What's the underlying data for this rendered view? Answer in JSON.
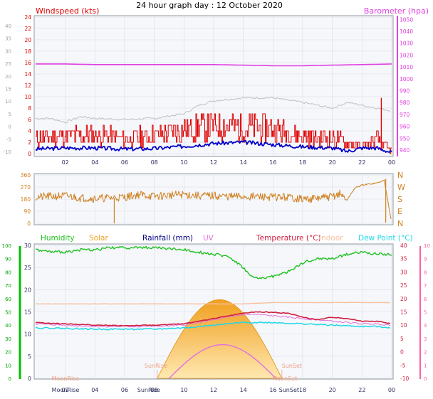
{
  "title": "24 hour graph day : 12 October 2020",
  "colors": {
    "wind": "#e00000",
    "gust_avg": "#0000c8",
    "baro": "#e040e0",
    "gust_max": "#c0c0c0",
    "dir": "#d08020",
    "humidity": "#20c020",
    "solar": "#f0a020",
    "rainfall": "#000080",
    "uv": "#e070e0",
    "temperature": "#d02040",
    "indoor": "#f8c0a0",
    "dewpoint": "#20d8e8",
    "axis_left_green": "#00c000",
    "axis_right_pink": "#ff60a0"
  },
  "chart_data": [
    {
      "type": "line",
      "panel": "wind",
      "labels": {
        "left": "Windspeed (kts)",
        "right": "Barometer (hpa)"
      },
      "x_ticks": [
        "02",
        "04",
        "06",
        "08",
        "10",
        "12",
        "14",
        "16",
        "18",
        "20",
        "22",
        "00"
      ],
      "y_left_ticks_kts": [
        "24",
        "22",
        "20",
        "18",
        "16",
        "14",
        "12",
        "10",
        "8",
        "6",
        "4",
        "2",
        "0"
      ],
      "y_left_ticks_grey": [
        "40",
        "35",
        "30",
        "25",
        "20",
        "15",
        "10",
        "5",
        "0",
        "-5",
        "-10"
      ],
      "y_right_ticks": [
        "1050",
        "1040",
        "1030",
        "1020",
        "1010",
        "1000",
        "990",
        "980",
        "970",
        "960",
        "950",
        "940"
      ],
      "ylim_left": [
        0,
        24
      ],
      "ylim_right": [
        937,
        1052
      ],
      "series": [
        {
          "key": "baro",
          "x": [
            0,
            2,
            4,
            6,
            8,
            10,
            12,
            14,
            16,
            18,
            20,
            22,
            24
          ],
          "values": [
            1012.5,
            1012.5,
            1012,
            1012,
            1012,
            1012,
            1012,
            1011.5,
            1011,
            1011,
            1011.5,
            1012,
            1012.5
          ]
        },
        {
          "key": "gust_max",
          "x": [
            0,
            1,
            2,
            3,
            4,
            6,
            8,
            10,
            11,
            12,
            14,
            16,
            18,
            20,
            21,
            22,
            23,
            24
          ],
          "values": [
            6.2,
            6.2,
            5.5,
            6.5,
            6.2,
            6.0,
            6.2,
            7.0,
            8.5,
            9.3,
            9.8,
            9.8,
            9.0,
            8.0,
            9.0,
            8.5,
            8.0,
            7.5
          ]
        },
        {
          "key": "wind",
          "x": [
            0,
            2,
            4,
            6,
            8,
            10,
            12,
            14,
            16,
            18,
            20,
            21,
            22,
            23,
            24
          ],
          "values": [
            2.5,
            3.0,
            3.0,
            2.5,
            3.0,
            4.0,
            4.5,
            4.5,
            4.0,
            3.0,
            2.5,
            2.0,
            1.0,
            2.5,
            0.5
          ]
        },
        {
          "key": "gust_avg",
          "x": [
            0,
            2,
            4,
            6,
            8,
            10,
            12,
            14,
            16,
            18,
            20,
            21,
            22,
            23,
            24
          ],
          "values": [
            0.8,
            1.0,
            1.0,
            0.8,
            0.9,
            1.3,
            1.8,
            2.0,
            1.6,
            1.2,
            1.0,
            0.4,
            1.0,
            1.0,
            0.2
          ]
        }
      ],
      "spike": {
        "x": 23.3,
        "value": 9.8
      }
    },
    {
      "type": "line",
      "panel": "direction",
      "y_left_ticks": [
        "360",
        "270",
        "180",
        "90",
        "0"
      ],
      "y_right_ticks": [
        "N",
        "W",
        "S",
        "E",
        "N"
      ],
      "ylim": [
        0,
        360
      ],
      "series": [
        {
          "key": "dir",
          "x": [
            0,
            1,
            2,
            3,
            4,
            5,
            6,
            7,
            8,
            9,
            10,
            11,
            12,
            13,
            14,
            15,
            16,
            17,
            18,
            19,
            20,
            20.5,
            21,
            21.5,
            22,
            23,
            23.5,
            24
          ],
          "values": [
            195,
            200,
            205,
            190,
            185,
            190,
            195,
            215,
            200,
            210,
            215,
            205,
            205,
            200,
            200,
            198,
            195,
            195,
            180,
            185,
            200,
            220,
            175,
            260,
            285,
            300,
            320,
            5
          ]
        }
      ]
    },
    {
      "type": "line",
      "panel": "temperature",
      "legend": [
        "Humidity",
        "Solar",
        "Rainfall (mm)",
        "UV",
        "Temperature (°C)",
        "Indoor",
        "Dew Point (°C)"
      ],
      "y_far_left_ticks": [
        "100",
        "90",
        "80",
        "70",
        "60",
        "50",
        "40",
        "30",
        "20",
        "10",
        "0"
      ],
      "y_left_ticks": [
        "30",
        "25",
        "20",
        "15",
        "10",
        "5",
        "0"
      ],
      "y_right_ticks": [
        "40",
        "35",
        "30",
        "25",
        "20",
        "15",
        "10",
        "5",
        "0",
        "-5",
        "-10"
      ],
      "y_far_right_ticks": [
        "10",
        "9",
        "8",
        "7",
        "6",
        "5",
        "4",
        "3",
        "2",
        "1",
        "0"
      ],
      "ylim_right": [
        -10,
        40
      ],
      "sun_rise_label": "SunRise",
      "sun_set_label": "SunSet",
      "moon_rise_label": "MoonRise",
      "moon_set_label": "MoonSet",
      "series": [
        {
          "key": "humidity",
          "x": [
            0,
            1,
            2,
            3,
            4,
            5,
            6,
            8,
            10,
            12,
            13,
            14,
            14.5,
            15,
            16,
            17,
            18,
            19,
            20,
            21,
            22,
            23,
            24
          ],
          "values": [
            29,
            28.5,
            28.5,
            29,
            29,
            29.5,
            29.5,
            29.5,
            29,
            28,
            27.5,
            25,
            23,
            22.5,
            23,
            24,
            26,
            27,
            27,
            28,
            28.5,
            28,
            28
          ]
        },
        {
          "key": "indoor",
          "x": [
            0,
            4,
            8,
            10,
            12,
            14,
            16,
            18,
            20,
            22,
            24
          ],
          "values": [
            18,
            18,
            18,
            18,
            18,
            18,
            18.5,
            18.5,
            18.5,
            18.5,
            18.5
          ]
        },
        {
          "key": "temperature",
          "x": [
            0,
            2,
            4,
            6,
            8,
            10,
            11,
            12,
            13,
            14,
            15,
            16,
            17,
            18,
            19,
            20,
            21,
            22,
            23,
            24
          ],
          "values": [
            11,
            10.5,
            10,
            9.8,
            10,
            10.5,
            11.5,
            12.5,
            13.5,
            14.5,
            15,
            14.8,
            14.5,
            13,
            12,
            13,
            12.5,
            11.5,
            11.5,
            10.5
          ]
        },
        {
          "key": "uv_like",
          "x": [
            0,
            2,
            4,
            6,
            8,
            10,
            11,
            12,
            13,
            14,
            15,
            16,
            17,
            18,
            19,
            20,
            21,
            22,
            23,
            24
          ],
          "values": [
            10.5,
            10,
            9.5,
            9.5,
            9.5,
            10,
            11,
            12,
            13,
            14,
            14,
            13.5,
            13,
            12.5,
            12,
            11.5,
            11,
            10.5,
            10.5,
            10
          ]
        },
        {
          "key": "dewpoint",
          "x": [
            0,
            2,
            4,
            6,
            8,
            10,
            12,
            14,
            16,
            18,
            20,
            22,
            23,
            24
          ],
          "values": [
            9,
            8.8,
            8.5,
            8.5,
            8.5,
            9,
            10,
            11,
            11,
            10.5,
            10,
            9.5,
            9.5,
            9
          ]
        }
      ],
      "solar": {
        "sunrise": 8.2,
        "sunset": 16.6,
        "peak": 12.6,
        "peak_value": 37
      },
      "uv_curve": {
        "start": 9.0,
        "end": 16.2,
        "peak": 12.6,
        "peak_value": 7.6
      }
    }
  ]
}
